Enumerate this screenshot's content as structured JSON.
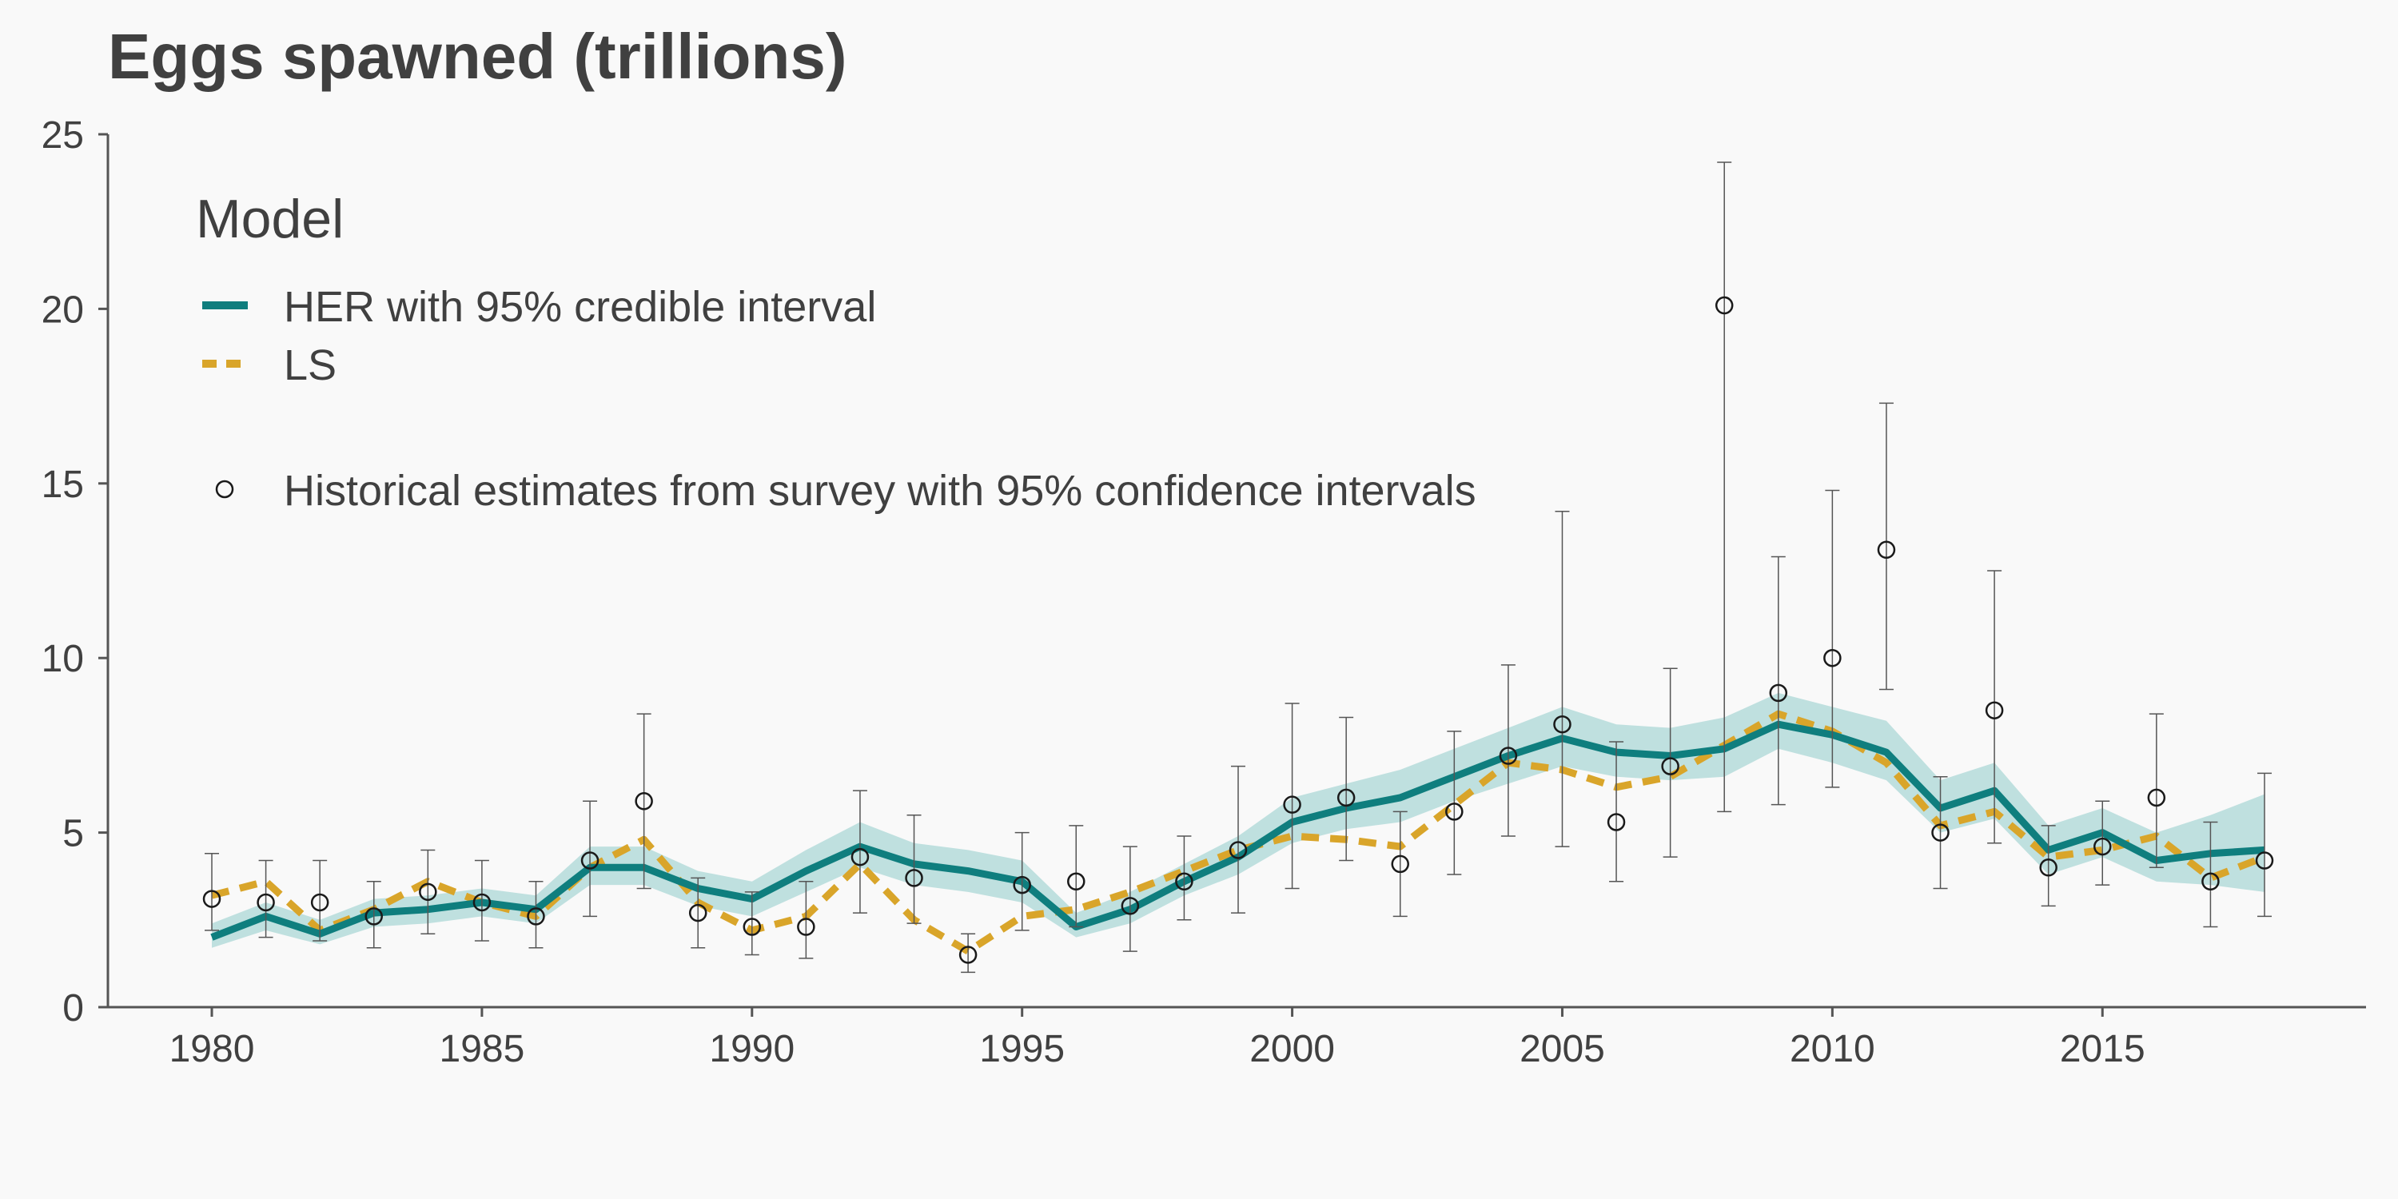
{
  "chart_data": {
    "type": "line",
    "title": "Eggs spawned (trillions)",
    "xlabel": "",
    "ylabel": "",
    "xlim": [
      1980,
      2018
    ],
    "ylim": [
      0,
      25
    ],
    "x_ticks": [
      1980,
      1985,
      1990,
      1995,
      2000,
      2005,
      2010,
      2015
    ],
    "y_ticks": [
      0,
      5,
      10,
      15,
      20,
      25
    ],
    "grid": false,
    "legend": {
      "title": "Model",
      "placement": "top-left",
      "her_label": "HER with 95% credible interval",
      "ls_label": "LS",
      "survey_label": "Historical estimates from survey with 95% confidence intervals"
    },
    "colors": {
      "her": "#0f7e7e",
      "her_band": "#bfe0df",
      "ls": "#d9a52a",
      "survey": "#1a1a1a",
      "axis": "#555555"
    },
    "years": [
      1980,
      1981,
      1982,
      1983,
      1984,
      1985,
      1986,
      1987,
      1988,
      1989,
      1990,
      1991,
      1992,
      1993,
      1994,
      1995,
      1996,
      1997,
      1998,
      1999,
      2000,
      2001,
      2002,
      2003,
      2004,
      2005,
      2006,
      2007,
      2008,
      2009,
      2010,
      2011,
      2012,
      2013,
      2014,
      2015,
      2016,
      2017,
      2018
    ],
    "series": [
      {
        "name": "HER with 95% credible interval",
        "values": [
          2.0,
          2.6,
          2.1,
          2.7,
          2.8,
          3.0,
          2.8,
          4.0,
          4.0,
          3.4,
          3.1,
          3.9,
          4.6,
          4.1,
          3.9,
          3.6,
          2.3,
          2.8,
          3.6,
          4.3,
          5.3,
          5.7,
          6.0,
          6.6,
          7.2,
          7.7,
          7.3,
          7.2,
          7.4,
          8.1,
          7.8,
          7.3,
          5.7,
          6.2,
          4.5,
          5.0,
          4.2,
          4.4,
          4.5
        ],
        "lower": [
          1.7,
          2.2,
          1.8,
          2.3,
          2.4,
          2.6,
          2.4,
          3.5,
          3.5,
          2.9,
          2.6,
          3.3,
          4.0,
          3.5,
          3.3,
          3.0,
          2.0,
          2.4,
          3.2,
          3.8,
          4.7,
          5.1,
          5.3,
          5.9,
          6.4,
          6.9,
          6.6,
          6.5,
          6.6,
          7.4,
          7.0,
          6.5,
          5.0,
          5.4,
          3.8,
          4.3,
          3.6,
          3.5,
          3.3
        ],
        "upper": [
          2.4,
          3.0,
          2.5,
          3.1,
          3.2,
          3.4,
          3.2,
          4.6,
          4.6,
          3.9,
          3.6,
          4.5,
          5.3,
          4.7,
          4.5,
          4.2,
          2.7,
          3.3,
          4.1,
          4.9,
          6.0,
          6.4,
          6.8,
          7.4,
          8.0,
          8.6,
          8.1,
          8.0,
          8.3,
          9.0,
          8.6,
          8.2,
          6.5,
          7.0,
          5.2,
          5.7,
          5.0,
          5.5,
          6.1
        ]
      },
      {
        "name": "LS",
        "values": [
          3.2,
          3.6,
          2.2,
          2.8,
          3.6,
          3.0,
          2.6,
          4.0,
          4.8,
          3.0,
          2.2,
          2.6,
          4.1,
          2.5,
          1.6,
          2.6,
          2.8,
          3.3,
          3.9,
          4.5,
          4.9,
          4.8,
          4.6,
          5.8,
          7.0,
          6.8,
          6.3,
          6.6,
          7.5,
          8.4,
          7.9,
          7.0,
          5.2,
          5.6,
          4.3,
          4.5,
          4.9,
          3.7,
          4.3
        ]
      }
    ],
    "survey": {
      "name": "Historical estimates from survey with 95% confidence intervals",
      "values": [
        3.1,
        3.0,
        3.0,
        2.6,
        3.3,
        3.0,
        2.6,
        4.2,
        5.9,
        2.7,
        2.3,
        2.3,
        4.3,
        3.7,
        1.5,
        3.5,
        3.6,
        2.9,
        3.6,
        4.5,
        5.8,
        6.0,
        4.1,
        5.6,
        7.2,
        8.1,
        5.3,
        6.9,
        20.1,
        9.0,
        10.0,
        13.1,
        5.0,
        8.5,
        4.0,
        4.6,
        6.0,
        3.6,
        4.2
      ],
      "lower": [
        2.2,
        2.0,
        1.9,
        1.7,
        2.1,
        1.9,
        1.7,
        2.6,
        3.4,
        1.7,
        1.5,
        1.4,
        2.7,
        2.4,
        1.0,
        2.2,
        2.3,
        1.6,
        2.5,
        2.7,
        3.4,
        4.2,
        2.6,
        3.8,
        4.9,
        4.6,
        3.6,
        4.3,
        5.6,
        5.8,
        6.3,
        9.1,
        3.4,
        4.7,
        2.9,
        3.5,
        4.0,
        2.3,
        2.6
      ],
      "upper": [
        4.4,
        4.2,
        4.2,
        3.6,
        4.5,
        4.2,
        3.6,
        5.9,
        8.4,
        3.7,
        3.3,
        3.6,
        6.2,
        5.5,
        2.1,
        5.0,
        5.2,
        4.6,
        4.9,
        6.9,
        8.7,
        8.3,
        5.6,
        7.9,
        9.8,
        14.2,
        7.6,
        9.7,
        24.2,
        12.9,
        14.8,
        17.3,
        6.6,
        12.5,
        5.2,
        5.9,
        8.4,
        5.3,
        6.7
      ]
    }
  }
}
